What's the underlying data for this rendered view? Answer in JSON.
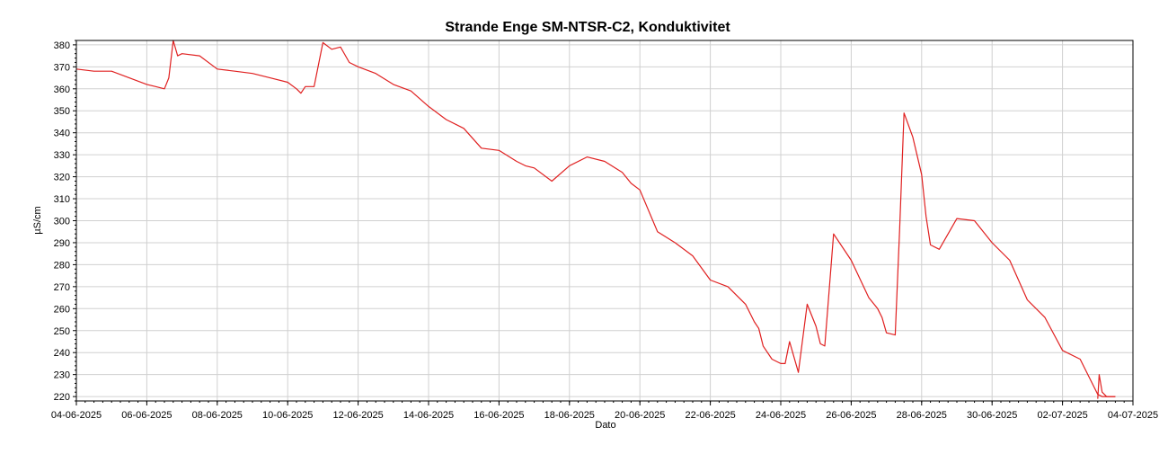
{
  "chart_data": {
    "type": "line",
    "title": "Strande Enge SM-NTSR-C2, Konduktivitet",
    "xlabel": "Dato",
    "ylabel": "µS/cm",
    "xlim": [
      "04-06-2025",
      "04-07-2025"
    ],
    "ylim": [
      218,
      382
    ],
    "grid": true,
    "x_ticks": [
      "04-06-2025",
      "06-06-2025",
      "08-06-2025",
      "10-06-2025",
      "12-06-2025",
      "14-06-2025",
      "16-06-2025",
      "18-06-2025",
      "20-06-2025",
      "22-06-2025",
      "24-06-2025",
      "26-06-2025",
      "28-06-2025",
      "30-06-2025",
      "02-07-2025",
      "04-07-2025"
    ],
    "y_ticks": [
      220,
      230,
      240,
      250,
      260,
      270,
      280,
      290,
      300,
      310,
      320,
      330,
      340,
      350,
      360,
      370,
      380
    ],
    "series": [
      {
        "color": "#e02020",
        "x": [
          "04-06-2025 00:00",
          "04-06-2025 12:00",
          "05-06-2025 00:00",
          "05-06-2025 12:00",
          "06-06-2025 00:00",
          "06-06-2025 06:00",
          "06-06-2025 12:00",
          "06-06-2025 15:00",
          "06-06-2025 18:00",
          "06-06-2025 21:00",
          "07-06-2025 00:00",
          "07-06-2025 12:00",
          "08-06-2025 00:00",
          "08-06-2025 12:00",
          "09-06-2025 00:00",
          "09-06-2025 12:00",
          "10-06-2025 00:00",
          "10-06-2025 06:00",
          "10-06-2025 09:00",
          "10-06-2025 12:00",
          "10-06-2025 18:00",
          "11-06-2025 00:00",
          "11-06-2025 06:00",
          "11-06-2025 12:00",
          "11-06-2025 18:00",
          "12-06-2025 00:00",
          "12-06-2025 12:00",
          "13-06-2025 00:00",
          "13-06-2025 12:00",
          "14-06-2025 00:00",
          "14-06-2025 12:00",
          "15-06-2025 00:00",
          "15-06-2025 12:00",
          "16-06-2025 00:00",
          "16-06-2025 12:00",
          "16-06-2025 18:00",
          "17-06-2025 00:00",
          "17-06-2025 12:00",
          "18-06-2025 00:00",
          "18-06-2025 12:00",
          "19-06-2025 00:00",
          "19-06-2025 12:00",
          "19-06-2025 18:00",
          "20-06-2025 00:00",
          "20-06-2025 12:00",
          "21-06-2025 00:00",
          "21-06-2025 12:00",
          "22-06-2025 00:00",
          "22-06-2025 12:00",
          "23-06-2025 00:00",
          "23-06-2025 06:00",
          "23-06-2025 09:00",
          "23-06-2025 12:00",
          "23-06-2025 18:00",
          "24-06-2025 00:00",
          "24-06-2025 03:00",
          "24-06-2025 06:00",
          "24-06-2025 12:00",
          "24-06-2025 18:00",
          "25-06-2025 00:00",
          "25-06-2025 03:00",
          "25-06-2025 06:00",
          "25-06-2025 12:00",
          "26-06-2025 00:00",
          "26-06-2025 12:00",
          "26-06-2025 18:00",
          "26-06-2025 21:00",
          "27-06-2025 00:00",
          "27-06-2025 06:00",
          "27-06-2025 09:00",
          "27-06-2025 12:00",
          "27-06-2025 18:00",
          "28-06-2025 00:00",
          "28-06-2025 03:00",
          "28-06-2025 06:00",
          "28-06-2025 12:00",
          "29-06-2025 00:00",
          "29-06-2025 12:00",
          "30-06-2025 00:00",
          "30-06-2025 12:00",
          "01-07-2025 00:00",
          "01-07-2025 12:00",
          "02-07-2025 00:00",
          "02-07-2025 12:00",
          "02-07-2025 21:00",
          "03-07-2025 00:00",
          "03-07-2025 03:00",
          "03-07-2025 12:00"
        ],
        "y": [
          369,
          368,
          368,
          365,
          362,
          361,
          360,
          365,
          382,
          375,
          376,
          375,
          369,
          368,
          367,
          365,
          363,
          360,
          358,
          361,
          361,
          381,
          378,
          379,
          372,
          370,
          367,
          362,
          359,
          352,
          346,
          342,
          333,
          332,
          327,
          325,
          324,
          318,
          325,
          329,
          327,
          322,
          317,
          314,
          295,
          290,
          284,
          273,
          270,
          262,
          254,
          251,
          243,
          237,
          235,
          235,
          245,
          231,
          262,
          252,
          244,
          243,
          294,
          282,
          265,
          260,
          256,
          249,
          248,
          296,
          349,
          338,
          321,
          302,
          289,
          287,
          301,
          300,
          290,
          282,
          264,
          256,
          241,
          237,
          225,
          221,
          220,
          220
        ]
      },
      {
        "color": "#e02020",
        "x": [
          "03-07-2025 00:00",
          "03-07-2025 01:00",
          "03-07-2025 03:00",
          "03-07-2025 06:00",
          "03-07-2025 12:00"
        ],
        "y": [
          219,
          230,
          222,
          220,
          220
        ]
      }
    ]
  }
}
